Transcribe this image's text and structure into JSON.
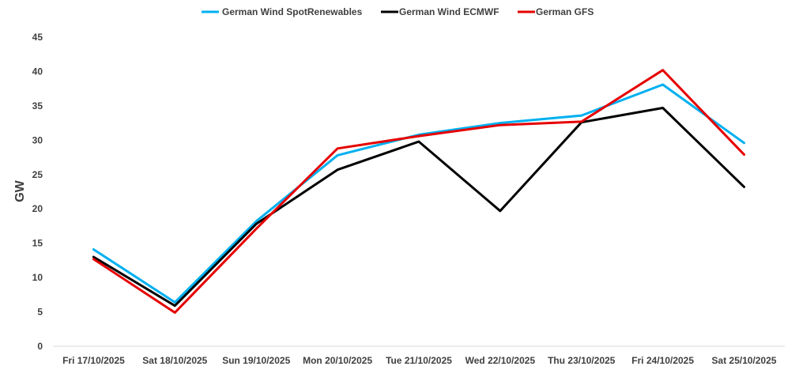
{
  "chart_data": {
    "type": "line",
    "title": "",
    "xlabel": "",
    "ylabel": "GW",
    "ylim": [
      0,
      45
    ],
    "yticks": [
      0,
      5,
      10,
      15,
      20,
      25,
      30,
      35,
      40,
      45
    ],
    "grid": false,
    "legend_position": "top",
    "categories": [
      "Fri 17/10/2025",
      "Sat 18/10/2025",
      "Sun 19/10/2025",
      "Mon 20/10/2025",
      "Tue 21/10/2025",
      "Wed 22/10/2025",
      "Thu 23/10/2025",
      "Fri 24/10/2025",
      "Sat 25/10/2025"
    ],
    "series": [
      {
        "name": "German Wind SpotRenewables",
        "color": "#00b0f0",
        "values": [
          14.1,
          6.4,
          18.2,
          27.8,
          30.8,
          32.5,
          33.6,
          38.1,
          29.6
        ]
      },
      {
        "name": "German Wind ECMWF",
        "color": "#000000",
        "values": [
          13.0,
          5.9,
          17.8,
          25.7,
          29.8,
          19.7,
          32.6,
          34.7,
          23.2
        ]
      },
      {
        "name": "German GFS",
        "color": "#e60000",
        "values": [
          12.7,
          4.9,
          17.1,
          28.8,
          30.6,
          32.2,
          32.7,
          40.2,
          27.9
        ]
      }
    ]
  }
}
